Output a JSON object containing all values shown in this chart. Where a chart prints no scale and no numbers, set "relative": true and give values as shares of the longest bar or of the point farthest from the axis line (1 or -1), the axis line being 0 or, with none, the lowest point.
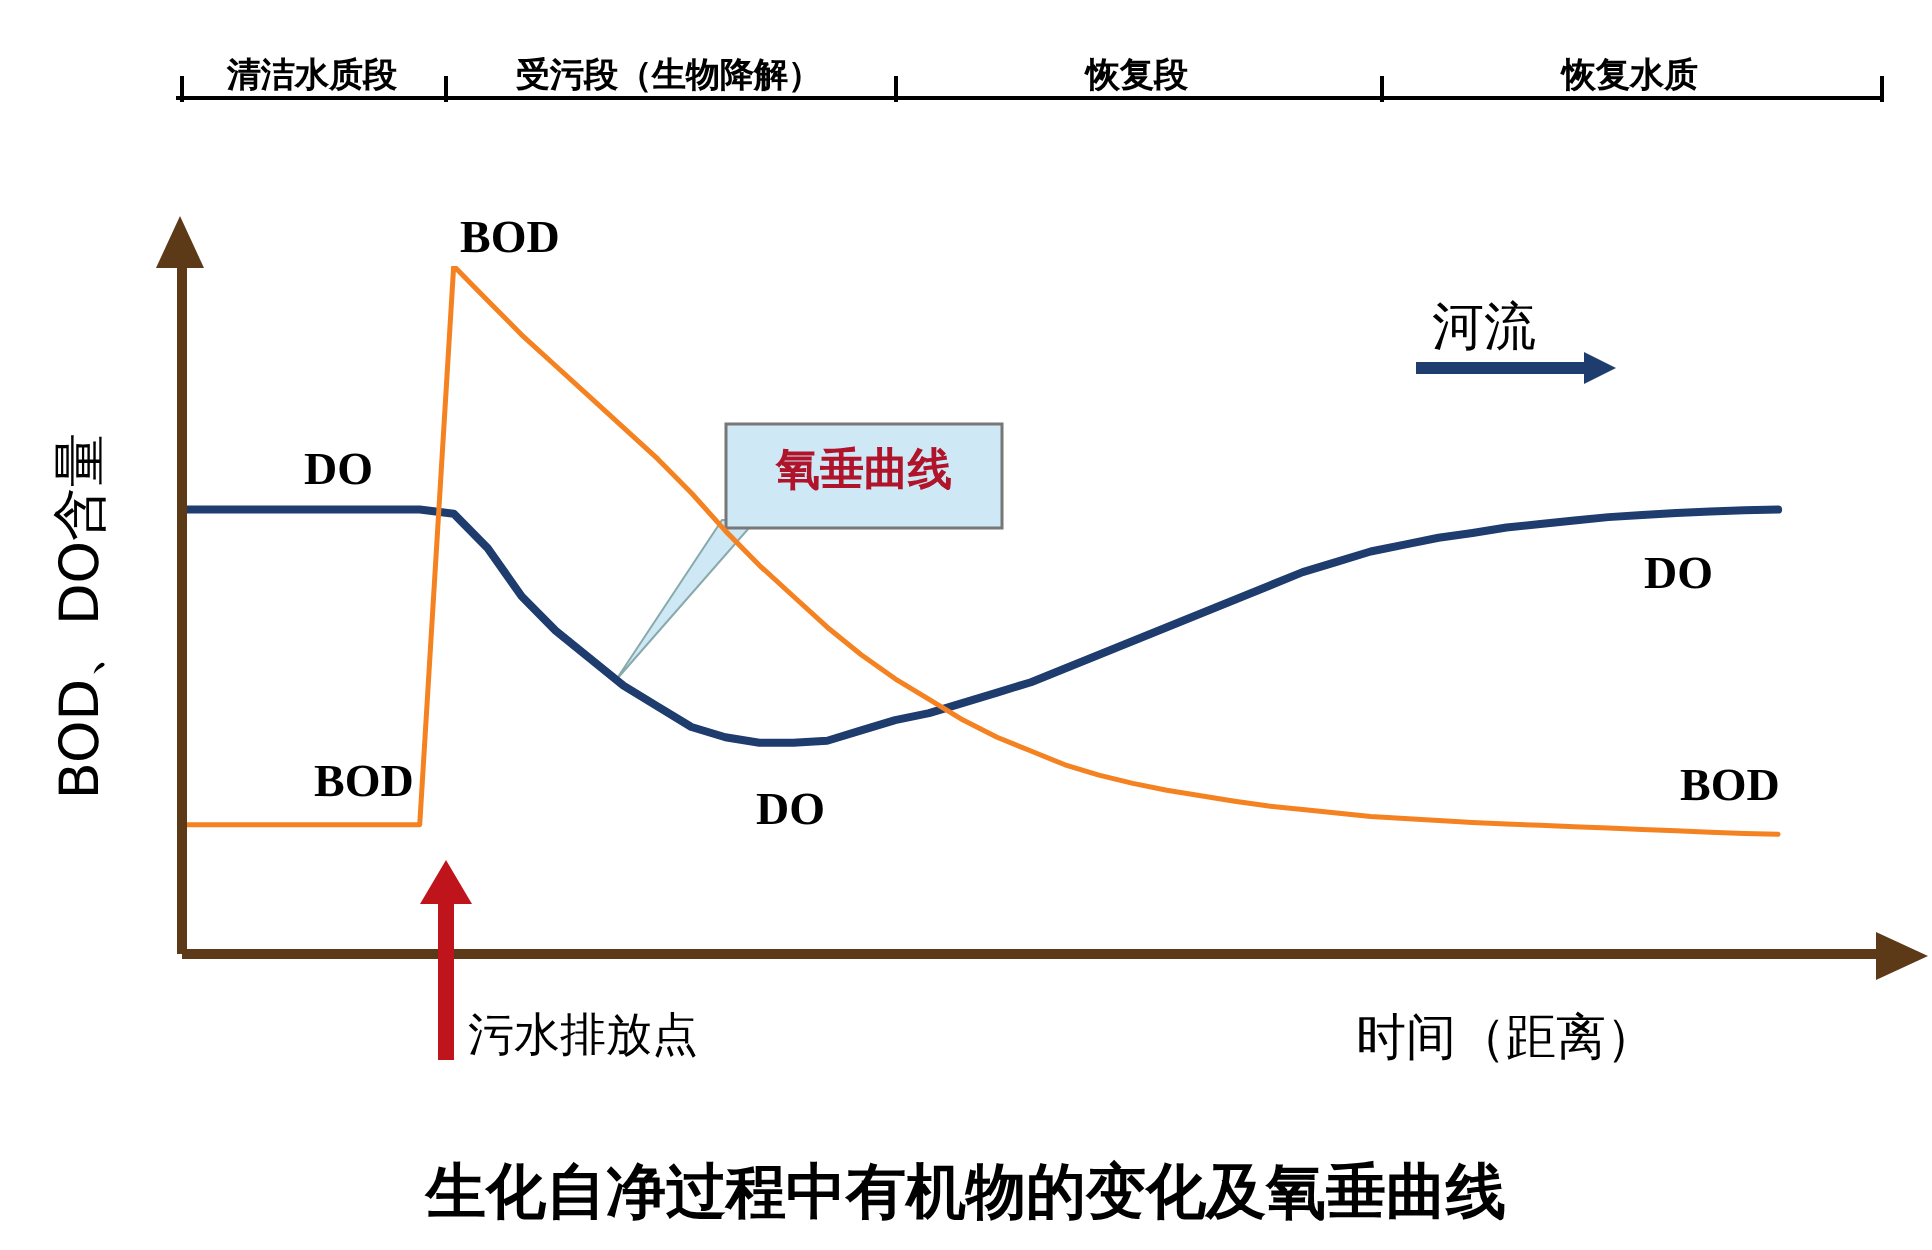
{
  "chart_data": {
    "type": "line",
    "relative": true,
    "title": "生化自净过程中有机物的变化及氧垂曲线",
    "xlabel": "时间（距离）",
    "ylabel": "BOD、DO含量",
    "annotations": [
      "清洁水质段",
      "受污段（生物降解）",
      "恢复段",
      "恢复水质",
      "河流",
      "氧垂曲线",
      "污水排放点"
    ],
    "categories": [
      null,
      null,
      null,
      null,
      null,
      null,
      null,
      null,
      null,
      null,
      null,
      null,
      null,
      null,
      null,
      null,
      null,
      null,
      null,
      null,
      null,
      null,
      null,
      null,
      null,
      null,
      null,
      null,
      null,
      null,
      null,
      null,
      null,
      null,
      null,
      null,
      null,
      null,
      null,
      null,
      null,
      null,
      null,
      null,
      null,
      null,
      null,
      null,
      null,
      null
    ],
    "series": [
      {
        "name": "DO",
        "color": "#1f3c6e",
        "values": [
          0.646,
          0.646,
          0.646,
          0.646,
          0.646,
          0.646,
          0.646,
          0.646,
          0.64,
          0.59,
          0.52,
          0.47,
          0.43,
          0.39,
          0.36,
          0.33,
          0.315,
          0.307,
          0.307,
          0.31,
          0.325,
          0.34,
          0.35,
          0.365,
          0.38,
          0.395,
          0.415,
          0.435,
          0.455,
          0.475,
          0.495,
          0.515,
          0.535,
          0.555,
          0.57,
          0.585,
          0.595,
          0.605,
          0.612,
          0.62,
          0.625,
          0.63,
          0.635,
          0.638,
          0.641,
          0.643,
          0.645,
          0.646,
          null,
          null
        ]
      },
      {
        "name": "BOD",
        "color": "#f58220",
        "values": [
          0.188,
          0.188,
          0.188,
          0.188,
          0.188,
          0.188,
          0.188,
          0.188,
          1.0,
          0.95,
          0.9,
          0.855,
          0.81,
          0.765,
          0.72,
          0.67,
          0.615,
          0.565,
          0.52,
          0.475,
          0.435,
          0.4,
          0.37,
          0.34,
          0.315,
          0.295,
          0.275,
          0.26,
          0.248,
          0.238,
          0.23,
          0.222,
          0.215,
          0.21,
          0.205,
          0.2,
          0.197,
          0.194,
          0.191,
          0.189,
          0.187,
          0.185,
          0.183,
          0.181,
          0.179,
          0.177,
          0.175,
          0.174,
          null,
          null
        ]
      }
    ],
    "marker": "none",
    "line_style": "solid",
    "grid": false,
    "legend": false
  }
}
